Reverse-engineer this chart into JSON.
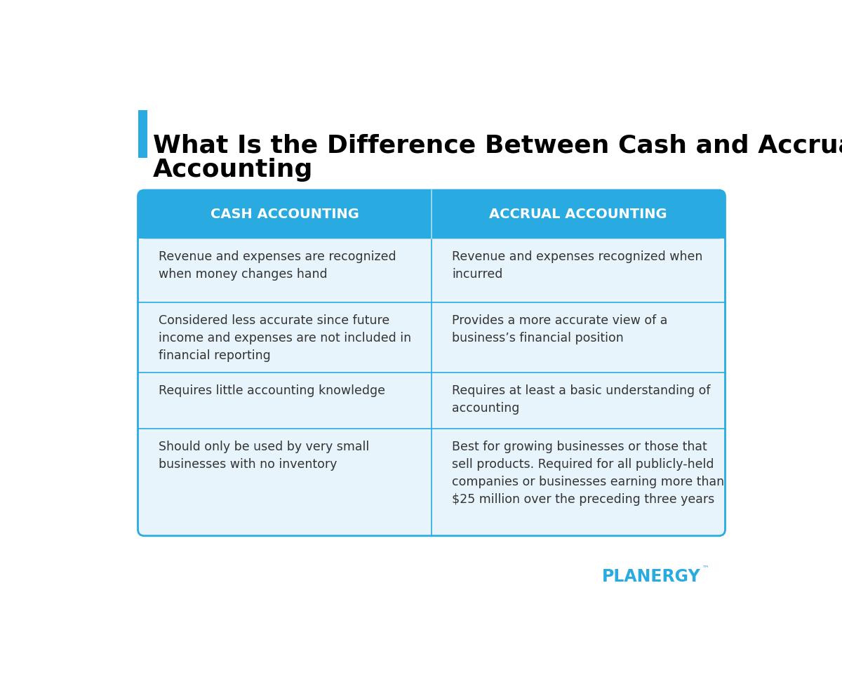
{
  "title_line1": "What Is the Difference Between Cash and Accrual",
  "title_line2": "Accounting",
  "title_fontsize": 26,
  "title_color": "#000000",
  "title_accent_color": "#29ABE2",
  "background_color": "#FFFFFF",
  "table_bg_color": "#E8F4FB",
  "header_bg_color": "#29ABE2",
  "header_text_color": "#FFFFFF",
  "header_fontsize": 14,
  "cell_text_color": "#333333",
  "cell_fontsize": 12.5,
  "border_color": "#29ABE2",
  "divider_color": "#29ABE2",
  "col1_header": "CASH ACCOUNTING",
  "col2_header": "ACCRUAL ACCOUNTING",
  "rows": [
    [
      "Revenue and expenses are recognized\nwhen money changes hand",
      "Revenue and expenses recognized when\nincurred"
    ],
    [
      "Considered less accurate since future\nincome and expenses are not included in\nfinancial reporting",
      "Provides a more accurate view of a\nbusiness’s financial position"
    ],
    [
      "Requires little accounting knowledge",
      "Requires at least a basic understanding of\naccounting"
    ],
    [
      "Should only be used by very small\nbusinesses with no inventory",
      "Best for growing businesses or those that\nsell products. Required for all publicly-held\ncompanies or businesses earning more than\n$25 million over the preceding three years"
    ]
  ],
  "planergy_text": "PLANERGY",
  "planergy_color": "#29ABE2",
  "planergy_dot_color": "#F7941D",
  "planergy_fontsize": 17
}
